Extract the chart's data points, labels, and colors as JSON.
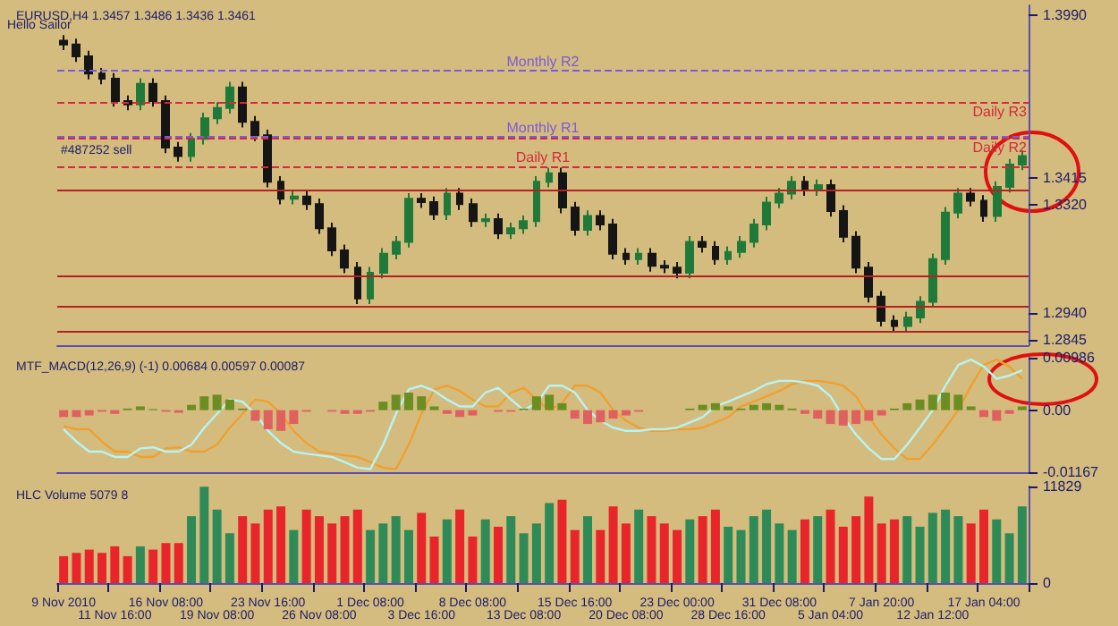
{
  "chart_data": [
    {
      "type": "candlestick",
      "title": "EURUSD,H4 1.3457 1.3486 1.3436 1.3461",
      "annotations": [
        "Hello Sailor",
        "#487252 sell"
      ],
      "categories": [
        null,
        null,
        null,
        null,
        null,
        null,
        null,
        null,
        null,
        null,
        null,
        null,
        null,
        null,
        null,
        null,
        null,
        null,
        null,
        null,
        null,
        null,
        null,
        null,
        null,
        null,
        null,
        null,
        null,
        null,
        null,
        null,
        null,
        null,
        null,
        null,
        null,
        null,
        null,
        null,
        null,
        null,
        null,
        null,
        null,
        null,
        null,
        null,
        null,
        null,
        null,
        null,
        null,
        null,
        null,
        null,
        null,
        null,
        null,
        null,
        null,
        null,
        null,
        null,
        null,
        null,
        null,
        null,
        null,
        null,
        null,
        null,
        null,
        null,
        null,
        null
      ],
      "ohlc": [
        [
          1.39,
          1.392,
          1.3867,
          1.3887
        ],
        [
          1.3887,
          1.3907,
          1.3825,
          1.3845
        ],
        [
          1.3845,
          1.3865,
          1.3764,
          1.3784
        ],
        [
          1.3784,
          1.3804,
          1.3746,
          1.3766
        ],
        [
          1.3766,
          1.3786,
          1.3667,
          1.3687
        ],
        [
          1.3687,
          1.3707,
          1.3655,
          1.3675
        ],
        [
          1.3675,
          1.3768,
          1.3655,
          1.3748
        ],
        [
          1.3748,
          1.3768,
          1.3667,
          1.3687
        ],
        [
          1.3687,
          1.3707,
          1.3503,
          1.3523
        ],
        [
          1.3523,
          1.3543,
          1.3473,
          1.3493
        ],
        [
          1.3493,
          1.3574,
          1.3473,
          1.3554
        ],
        [
          1.3554,
          1.3646,
          1.3534,
          1.3626
        ],
        [
          1.3626,
          1.3683,
          1.3606,
          1.3663
        ],
        [
          1.3663,
          1.3755,
          1.3643,
          1.3735
        ],
        [
          1.3735,
          1.3755,
          1.3594,
          1.3614
        ],
        [
          1.3614,
          1.3634,
          1.3546,
          1.3566
        ],
        [
          1.3566,
          1.3586,
          1.3382,
          1.3402
        ],
        [
          1.3402,
          1.3422,
          1.3322,
          1.3342
        ],
        [
          1.3342,
          1.337,
          1.3322,
          1.335
        ],
        [
          1.335,
          1.337,
          1.3303,
          1.3323
        ],
        [
          1.3323,
          1.3343,
          1.3218,
          1.3238
        ],
        [
          1.3238,
          1.3258,
          1.314,
          1.316
        ],
        [
          1.316,
          1.318,
          1.3079,
          1.3099
        ],
        [
          1.3099,
          1.3119,
          1.297,
          1.299
        ],
        [
          1.299,
          1.3101,
          1.297,
          1.3081
        ],
        [
          1.3081,
          1.3168,
          1.3061,
          1.3148
        ],
        [
          1.3148,
          1.321,
          1.3128,
          1.319
        ],
        [
          1.319,
          1.3362,
          1.317,
          1.3342
        ],
        [
          1.3342,
          1.3362,
          1.331,
          1.333
        ],
        [
          1.333,
          1.335,
          1.3267,
          1.3287
        ],
        [
          1.3287,
          1.338,
          1.3267,
          1.336
        ],
        [
          1.336,
          1.338,
          1.3303,
          1.3323
        ],
        [
          1.3323,
          1.3343,
          1.3243,
          1.3263
        ],
        [
          1.3263,
          1.329,
          1.3243,
          1.327
        ],
        [
          1.327,
          1.329,
          1.32,
          1.322
        ],
        [
          1.322,
          1.3258,
          1.32,
          1.3238
        ],
        [
          1.3238,
          1.3283,
          1.3218,
          1.3263
        ],
        [
          1.3263,
          1.3422,
          1.3243,
          1.3402
        ],
        [
          1.3402,
          1.3452,
          1.3382,
          1.3432
        ],
        [
          1.3432,
          1.3452,
          1.3291,
          1.3311
        ],
        [
          1.3311,
          1.3331,
          1.3212,
          1.3232
        ],
        [
          1.3232,
          1.3301,
          1.3212,
          1.3281
        ],
        [
          1.3281,
          1.3301,
          1.3231,
          1.3251
        ],
        [
          1.3251,
          1.3271,
          1.3128,
          1.3148
        ],
        [
          1.3148,
          1.3168,
          1.3109,
          1.3129
        ],
        [
          1.3129,
          1.3168,
          1.3109,
          1.3148
        ],
        [
          1.3148,
          1.3168,
          1.3085,
          1.3105
        ],
        [
          1.3105,
          1.3125,
          1.3079,
          1.3099
        ],
        [
          1.3099,
          1.3119,
          1.3061,
          1.3081
        ],
        [
          1.3081,
          1.321,
          1.3061,
          1.319
        ],
        [
          1.319,
          1.321,
          1.3152,
          1.3172
        ],
        [
          1.3172,
          1.3192,
          1.3109,
          1.3129
        ],
        [
          1.3129,
          1.3174,
          1.3109,
          1.3154
        ],
        [
          1.3154,
          1.321,
          1.3134,
          1.319
        ],
        [
          1.319,
          1.3271,
          1.317,
          1.3251
        ],
        [
          1.3251,
          1.3349,
          1.3231,
          1.3329
        ],
        [
          1.3329,
          1.338,
          1.3309,
          1.336
        ],
        [
          1.336,
          1.3422,
          1.334,
          1.3402
        ],
        [
          1.3402,
          1.3422,
          1.3352,
          1.3372
        ],
        [
          1.3372,
          1.341,
          1.3352,
          1.339
        ],
        [
          1.339,
          1.341,
          1.3279,
          1.3299
        ],
        [
          1.3299,
          1.3319,
          1.3188,
          1.3208
        ],
        [
          1.3208,
          1.3228,
          1.3079,
          1.3099
        ],
        [
          1.3099,
          1.3119,
          1.2976,
          1.2996
        ],
        [
          1.2996,
          1.3016,
          1.2891,
          1.2911
        ],
        [
          1.2911,
          1.2931,
          1.2873,
          1.2893
        ],
        [
          1.2893,
          1.2943,
          1.2873,
          1.2923
        ],
        [
          1.2923,
          1.2998,
          1.2903,
          1.2978
        ],
        [
          1.2978,
          1.3149,
          1.2958,
          1.3129
        ],
        [
          1.3129,
          1.3313,
          1.3109,
          1.3293
        ],
        [
          1.3293,
          1.338,
          1.3273,
          1.336
        ],
        [
          1.336,
          1.338,
          1.3315,
          1.3335
        ],
        [
          1.3335,
          1.3355,
          1.3261,
          1.3281
        ],
        [
          1.3281,
          1.3404,
          1.3261,
          1.3384
        ],
        [
          1.3384,
          1.3483,
          1.3364,
          1.3463
        ],
        [
          1.3463,
          1.3513,
          1.3443,
          1.3493
        ]
      ],
      "colors": [
        "#151515",
        "#151515",
        "#151515",
        "#151515",
        "#151515",
        "#151515",
        "#1f7a3a",
        "#151515",
        "#151515",
        "#151515",
        "#1f7a3a",
        "#1f7a3a",
        "#1f7a3a",
        "#1f7a3a",
        "#151515",
        "#151515",
        "#151515",
        "#151515",
        "#1f7a3a",
        "#151515",
        "#151515",
        "#151515",
        "#151515",
        "#151515",
        "#1f7a3a",
        "#1f7a3a",
        "#1f7a3a",
        "#1f7a3a",
        "#151515",
        "#151515",
        "#1f7a3a",
        "#151515",
        "#151515",
        "#1f7a3a",
        "#151515",
        "#1f7a3a",
        "#1f7a3a",
        "#1f7a3a",
        "#1f7a3a",
        "#151515",
        "#151515",
        "#1f7a3a",
        "#151515",
        "#151515",
        "#151515",
        "#1f7a3a",
        "#151515",
        "#151515",
        "#151515",
        "#1f7a3a",
        "#151515",
        "#151515",
        "#1f7a3a",
        "#1f7a3a",
        "#1f7a3a",
        "#1f7a3a",
        "#1f7a3a",
        "#1f7a3a",
        "#151515",
        "#1f7a3a",
        "#151515",
        "#151515",
        "#151515",
        "#151515",
        "#151515",
        "#151515",
        "#1f7a3a",
        "#1f7a3a",
        "#1f7a3a",
        "#1f7a3a",
        "#1f7a3a",
        "#151515",
        "#151515",
        "#1f7a3a",
        "#1f7a3a",
        "#1f7a3a"
      ],
      "ylim": [
        1.2825,
        1.4025
      ],
      "yticks": [
        {
          "value": 1.399,
          "label": "1.3990"
        },
        1.3415,
        {
          "value": 1.332,
          "label": "1.3320"
        },
        {
          "value": 1.294,
          "label": "1.2940"
        },
        1.2845
      ],
      "ref_lines": [
        {
          "axis": "y",
          "value": 1.3796,
          "label": "Monthly R2",
          "color": "#7b5cd6",
          "line_style": "dashed"
        },
        {
          "axis": "y",
          "value": 1.3681,
          "label": "Daily R3",
          "color": "#d42a3a",
          "line_style": "dashed"
        },
        {
          "axis": "y",
          "value": 1.356,
          "label": "Monthly R1",
          "color": "#7b5cd6",
          "line_style": "dashed"
        },
        {
          "axis": "y",
          "value": 1.3554,
          "label": "Daily R2",
          "color": "#d42a3a",
          "line_style": "dashed"
        },
        {
          "axis": "y",
          "value": 1.3457,
          "label": "Daily R1",
          "color": "#d42a3a",
          "line_style": "dashed"
        },
        {
          "axis": "y",
          "value": 1.3372,
          "label": null,
          "color": "#b22222",
          "line_style": "solid"
        },
        {
          "axis": "y",
          "value": 1.3069,
          "label": null,
          "color": "#b22222",
          "line_style": "solid"
        },
        {
          "axis": "y",
          "value": 1.296,
          "label": null,
          "color": "#b22222",
          "line_style": "solid"
        },
        {
          "axis": "y",
          "value": 1.2875,
          "label": null,
          "color": "#b22222",
          "line_style": "solid"
        }
      ],
      "tick_labels": "y"
    },
    {
      "type": "line",
      "title": "MTF_MACD(12,26,9) (-1) 0.00684 0.00597 0.00087",
      "categories": [
        null,
        null,
        null,
        null,
        null,
        null,
        null,
        null,
        null,
        null,
        null,
        null,
        null,
        null,
        null,
        null,
        null,
        null,
        null,
        null,
        null,
        null,
        null,
        null,
        null,
        null,
        null,
        null,
        null,
        null,
        null,
        null,
        null,
        null,
        null,
        null,
        null,
        null,
        null,
        null,
        null,
        null,
        null,
        null,
        null,
        null,
        null,
        null,
        null,
        null,
        null,
        null,
        null,
        null,
        null,
        null,
        null,
        null,
        null,
        null,
        null,
        null,
        null,
        null,
        null,
        null,
        null,
        null,
        null,
        null,
        null,
        null,
        null,
        null,
        null,
        null
      ],
      "series": [
        {
          "type": "bar",
          "colors": [
            "#e06060",
            "#e06060",
            "#e06060",
            "#e06060",
            "#e06060",
            "#6b8e23",
            "#6b8e23",
            "#6b8e23",
            "#e06060",
            "#e06060",
            "#6b8e23",
            "#6b8e23",
            "#6b8e23",
            "#6b8e23",
            "#6b8e23",
            "#e06060",
            "#e06060",
            "#e06060",
            "#e06060",
            "#e06060",
            "#e06060",
            "#e06060",
            "#e06060",
            "#e06060",
            "#e06060",
            "#6b8e23",
            "#6b8e23",
            "#6b8e23",
            "#6b8e23",
            "#6b8e23",
            "#e06060",
            "#e06060",
            "#e06060",
            "#e06060",
            "#e06060",
            "#e06060",
            "#6b8e23",
            "#6b8e23",
            "#6b8e23",
            "#6b8e23",
            "#e06060",
            "#e06060",
            "#e06060",
            "#e06060",
            "#e06060",
            "#e06060",
            "#e06060",
            "#e06060",
            "#e06060",
            "#6b8e23",
            "#6b8e23",
            "#6b8e23",
            "#6b8e23",
            "#6b8e23",
            "#6b8e23",
            "#6b8e23",
            "#6b8e23",
            "#6b8e23",
            "#e06060",
            "#e06060",
            "#e06060",
            "#e06060",
            "#e06060",
            "#e06060",
            "#e06060",
            "#6b8e23",
            "#6b8e23",
            "#6b8e23",
            "#6b8e23",
            "#6b8e23",
            "#6b8e23",
            "#6b8e23",
            "#e06060",
            "#e06060",
            "#e06060",
            "#6b8e23"
          ],
          "values": [
            -0.0013,
            -0.0013,
            -0.001,
            -0.0003,
            -0.0007,
            0.0003,
            0.0007,
            0.0002,
            -0.0003,
            -0.0005,
            0.001,
            0.0026,
            0.0029,
            0.002,
            0.0003,
            -0.002,
            -0.0036,
            -0.0039,
            -0.0026,
            -0.0003,
            0.0,
            -0.0003,
            -0.0007,
            -0.0007,
            -0.0003,
            0.0016,
            0.0029,
            0.0033,
            0.0026,
            0.0007,
            -0.0007,
            -0.0013,
            -0.001,
            0.0,
            -0.0003,
            -0.0003,
            0.0003,
            0.0026,
            0.0029,
            0.0013,
            -0.0016,
            -0.0026,
            -0.0023,
            -0.0016,
            -0.001,
            -0.0003,
            0.0,
            0.0,
            0.0,
            0.0003,
            0.001,
            0.0013,
            0.0007,
            0.0003,
            0.001,
            0.0013,
            0.001,
            0.0003,
            -0.0007,
            -0.0016,
            -0.0026,
            -0.0029,
            -0.0026,
            -0.002,
            -0.001,
            0.0003,
            0.0013,
            0.002,
            0.0029,
            0.0033,
            0.0029,
            0.0007,
            -0.0013,
            -0.002,
            -0.0007,
            0.0007
          ]
        },
        {
          "color": "#f0a030",
          "values": [
            -0.003,
            -0.0036,
            -0.0036,
            -0.0059,
            -0.0078,
            -0.0078,
            -0.0088,
            -0.0088,
            -0.0072,
            -0.007,
            -0.0078,
            -0.0078,
            -0.0065,
            -0.0033,
            -0.0007,
            0.002,
            0.0016,
            -0.0007,
            -0.0039,
            -0.0062,
            -0.0078,
            -0.0082,
            -0.0085,
            -0.0088,
            -0.0098,
            -0.0108,
            -0.0111,
            -0.0065,
            -0.0007,
            0.0039,
            0.0046,
            0.0036,
            0.002,
            0.0007,
            0.0007,
            0.0033,
            0.0042,
            0.002,
            0.0,
            0.0013,
            0.0046,
            0.0046,
            0.0033,
            0.0,
            -0.002,
            -0.0033,
            -0.0039,
            -0.0039,
            -0.0036,
            -0.0036,
            -0.0033,
            -0.0023,
            -0.0013,
            0.0007,
            0.0016,
            0.0026,
            0.0036,
            0.0049,
            0.0055,
            0.0055,
            0.0052,
            0.0046,
            0.0026,
            -0.0013,
            -0.0046,
            -0.0072,
            -0.0092,
            -0.0092,
            -0.0065,
            -0.0033,
            0.0,
            0.0046,
            0.0085,
            0.0095,
            0.0082,
            0.0059
          ]
        },
        {
          "color": "#b8f4f4",
          "values": [
            -0.0036,
            -0.0059,
            -0.0078,
            -0.0078,
            -0.0088,
            -0.0088,
            -0.0072,
            -0.007,
            -0.0078,
            -0.0078,
            -0.0065,
            -0.0033,
            -0.0007,
            0.002,
            0.0016,
            -0.0007,
            -0.0039,
            -0.0062,
            -0.0078,
            -0.0082,
            -0.0085,
            -0.0088,
            -0.0098,
            -0.0108,
            -0.0111,
            -0.0065,
            -0.0007,
            0.0039,
            0.0046,
            0.0036,
            0.002,
            0.0007,
            0.0007,
            0.0033,
            0.0042,
            0.002,
            0.0,
            0.0013,
            0.0046,
            0.0046,
            0.0033,
            0.0,
            -0.002,
            -0.0033,
            -0.0039,
            -0.0039,
            -0.0036,
            -0.0036,
            -0.0033,
            -0.0023,
            -0.0013,
            0.0007,
            0.0016,
            0.0026,
            0.0036,
            0.0049,
            0.0055,
            0.0055,
            0.0052,
            0.0046,
            0.0026,
            -0.0013,
            -0.0046,
            -0.0072,
            -0.0092,
            -0.0092,
            -0.0065,
            -0.0033,
            0.0,
            0.0046,
            0.0085,
            0.0095,
            0.0082,
            0.0059,
            0.0065,
            0.0075
          ]
        }
      ],
      "ylim": [
        -0.01167,
        0.00986
      ],
      "yticks": [
        -0.01167,
        {
          "value": 0,
          "label": "0.00"
        },
        0.00986
      ],
      "tick_labels": "y"
    },
    {
      "type": "bar",
      "title": "HLC Volume 5079 8",
      "categories": [
        "9 Nov 2010",
        null,
        null,
        null,
        "11 Nov 16:00",
        null,
        null,
        null,
        "16 Nov 08:00",
        null,
        null,
        null,
        "19 Nov 08:00",
        null,
        null,
        null,
        "23 Nov 16:00",
        null,
        null,
        null,
        "26 Nov 08:00",
        null,
        null,
        null,
        "1 Dec 08:00",
        null,
        null,
        null,
        "3 Dec 16:00",
        null,
        null,
        null,
        "8 Dec 08:00",
        null,
        null,
        null,
        "13 Dec 08:00",
        null,
        null,
        null,
        "15 Dec 16:00",
        null,
        null,
        null,
        "20 Dec 08:00",
        null,
        null,
        null,
        "23 Dec 00:00",
        null,
        null,
        null,
        "28 Dec 16:00",
        null,
        null,
        null,
        "31 Dec 08:00",
        null,
        null,
        null,
        "5 Jan 04:00",
        null,
        null,
        null,
        "7 Jan 20:00",
        null,
        null,
        null,
        "12 Jan 12:00",
        null,
        null,
        null,
        "17 Jan 04:00",
        null,
        null,
        null
      ],
      "values": [
        3300,
        3700,
        4100,
        3700,
        4500,
        3300,
        4500,
        4100,
        4900,
        4900,
        8200,
        11800,
        9000,
        6100,
        8200,
        7300,
        9000,
        9400,
        6500,
        9000,
        8200,
        7300,
        8200,
        9000,
        6500,
        7300,
        8200,
        6500,
        8600,
        5700,
        7800,
        9000,
        5700,
        7800,
        6900,
        8200,
        6100,
        7300,
        9800,
        10200,
        6500,
        8200,
        6500,
        9400,
        7300,
        9000,
        8200,
        7300,
        6500,
        7800,
        8200,
        9000,
        6900,
        6500,
        8200,
        9000,
        7300,
        6500,
        7800,
        8200,
        9000,
        6900,
        8200,
        10600,
        7300,
        7800,
        8200,
        6900,
        8600,
        9000,
        8200,
        7300,
        9000,
        7800,
        6100,
        9400
      ],
      "colors": [
        "#e8262a",
        "#e8262a",
        "#e8262a",
        "#e8262a",
        "#e8262a",
        "#e8262a",
        "#2e8b57",
        "#e8262a",
        "#e8262a",
        "#e8262a",
        "#2e8b57",
        "#2e8b57",
        "#2e8b57",
        "#2e8b57",
        "#e8262a",
        "#e8262a",
        "#e8262a",
        "#e8262a",
        "#2e8b57",
        "#e8262a",
        "#e8262a",
        "#e8262a",
        "#e8262a",
        "#e8262a",
        "#2e8b57",
        "#2e8b57",
        "#2e8b57",
        "#2e8b57",
        "#e8262a",
        "#e8262a",
        "#2e8b57",
        "#e8262a",
        "#e8262a",
        "#2e8b57",
        "#e8262a",
        "#2e8b57",
        "#2e8b57",
        "#2e8b57",
        "#2e8b57",
        "#e8262a",
        "#e8262a",
        "#2e8b57",
        "#e8262a",
        "#e8262a",
        "#e8262a",
        "#2e8b57",
        "#e8262a",
        "#e8262a",
        "#e8262a",
        "#2e8b57",
        "#e8262a",
        "#e8262a",
        "#2e8b57",
        "#2e8b57",
        "#2e8b57",
        "#2e8b57",
        "#2e8b57",
        "#2e8b57",
        "#e8262a",
        "#2e8b57",
        "#e8262a",
        "#e8262a",
        "#e8262a",
        "#e8262a",
        "#e8262a",
        "#e8262a",
        "#2e8b57",
        "#2e8b57",
        "#2e8b57",
        "#2e8b57",
        "#2e8b57",
        "#e8262a",
        "#e8262a",
        "#2e8b57",
        "#2e8b57",
        "#2e8b57"
      ],
      "ylim": [
        0,
        11829
      ],
      "yticks": [
        0,
        11829
      ]
    }
  ]
}
